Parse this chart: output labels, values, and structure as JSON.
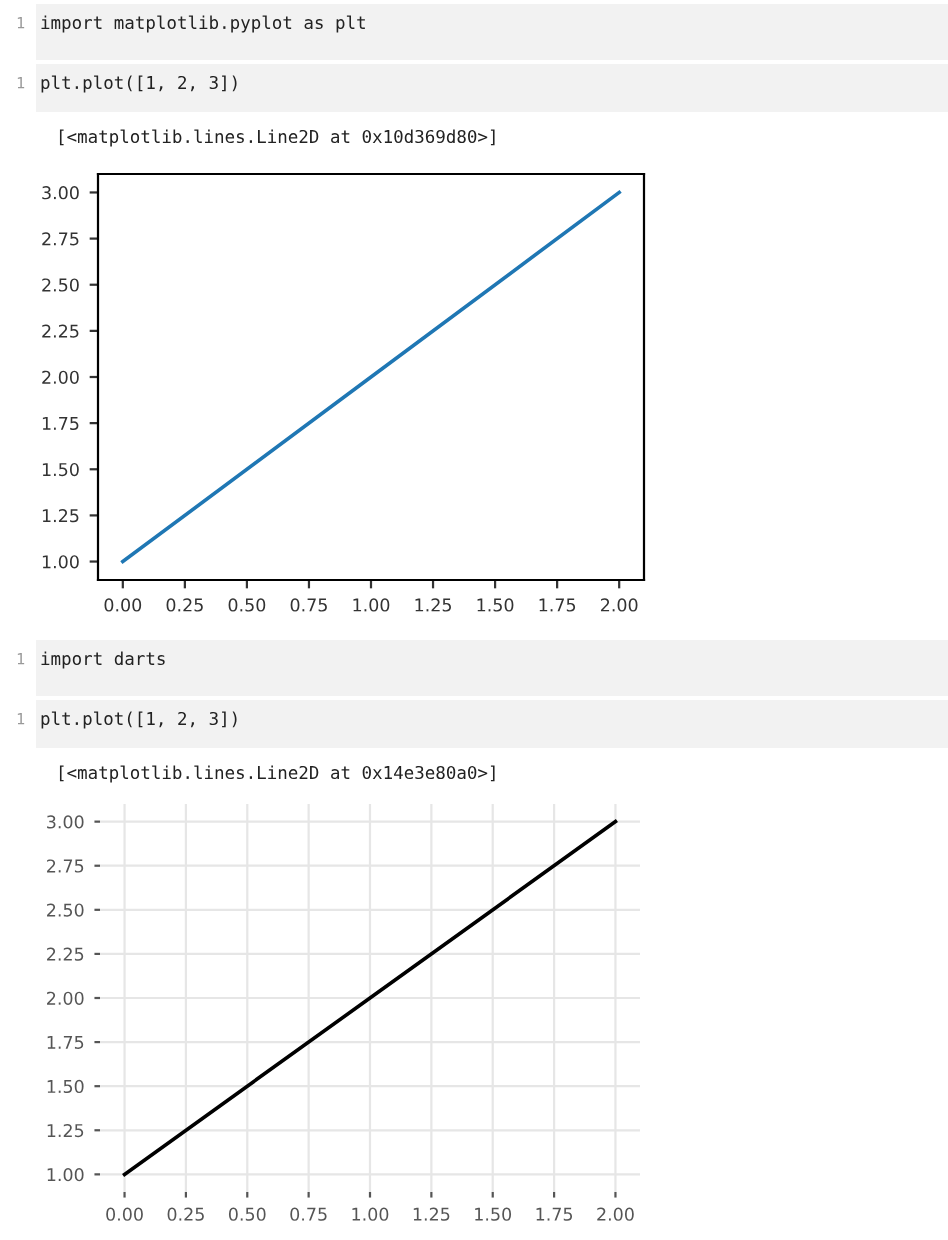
{
  "chart_data": [
    {
      "type": "line",
      "x": [
        0,
        1,
        2
      ],
      "series": [
        {
          "color": "#1f77b4",
          "values": [
            1,
            2,
            3
          ]
        }
      ],
      "xlim": [
        -0.1,
        2.1
      ],
      "ylim": [
        0.9,
        3.1
      ],
      "xticks": [
        {
          "value": 0,
          "label": "0.00"
        },
        {
          "value": 0.25,
          "label": "0.25"
        },
        {
          "value": 0.5,
          "label": "0.50"
        },
        {
          "value": 0.75,
          "label": "0.75"
        },
        {
          "value": 1,
          "label": "1.00"
        },
        {
          "value": 1.25,
          "label": "1.25"
        },
        {
          "value": 1.5,
          "label": "1.50"
        },
        {
          "value": 1.75,
          "label": "1.75"
        },
        {
          "value": 2,
          "label": "2.00"
        }
      ],
      "yticks": [
        {
          "value": 1,
          "label": "1.00"
        },
        {
          "value": 1.25,
          "label": "1.25"
        },
        {
          "value": 1.5,
          "label": "1.50"
        },
        {
          "value": 1.75,
          "label": "1.75"
        },
        {
          "value": 2,
          "label": "2.00"
        },
        {
          "value": 2.25,
          "label": "2.25"
        },
        {
          "value": 2.5,
          "label": "2.50"
        },
        {
          "value": 2.75,
          "label": "2.75"
        },
        {
          "value": 3,
          "label": "3.00"
        }
      ],
      "annotations": [
        "1",
        "import matplotlib.pyplot as plt",
        "1",
        "plt.plot([1, 2, 3])",
        "[<matplotlib.lines.Line2D at 0x10d369d80>]"
      ]
    },
    {
      "type": "line",
      "x": [
        0,
        1,
        2
      ],
      "series": [
        {
          "color": "#000000",
          "values": [
            1,
            2,
            3
          ]
        }
      ],
      "xlim": [
        -0.1,
        2.1
      ],
      "ylim": [
        0.9,
        3.1
      ],
      "xticks": [
        {
          "value": 0,
          "label": "0.00"
        },
        {
          "value": 0.25,
          "label": "0.25"
        },
        {
          "value": 0.5,
          "label": "0.50"
        },
        {
          "value": 0.75,
          "label": "0.75"
        },
        {
          "value": 1,
          "label": "1.00"
        },
        {
          "value": 1.25,
          "label": "1.25"
        },
        {
          "value": 1.5,
          "label": "1.50"
        },
        {
          "value": 1.75,
          "label": "1.75"
        },
        {
          "value": 2,
          "label": "2.00"
        }
      ],
      "yticks": [
        {
          "value": 1,
          "label": "1.00"
        },
        {
          "value": 1.25,
          "label": "1.25"
        },
        {
          "value": 1.5,
          "label": "1.50"
        },
        {
          "value": 1.75,
          "label": "1.75"
        },
        {
          "value": 2,
          "label": "2.00"
        },
        {
          "value": 2.25,
          "label": "2.25"
        },
        {
          "value": 2.5,
          "label": "2.50"
        },
        {
          "value": 2.75,
          "label": "2.75"
        },
        {
          "value": 3,
          "label": "3.00"
        }
      ],
      "grid": true,
      "annotations": [
        "1",
        "import darts",
        "1",
        "plt.plot([1, 2, 3])",
        "[<matplotlib.lines.Line2D at 0x14e3e80a0>]"
      ]
    }
  ]
}
